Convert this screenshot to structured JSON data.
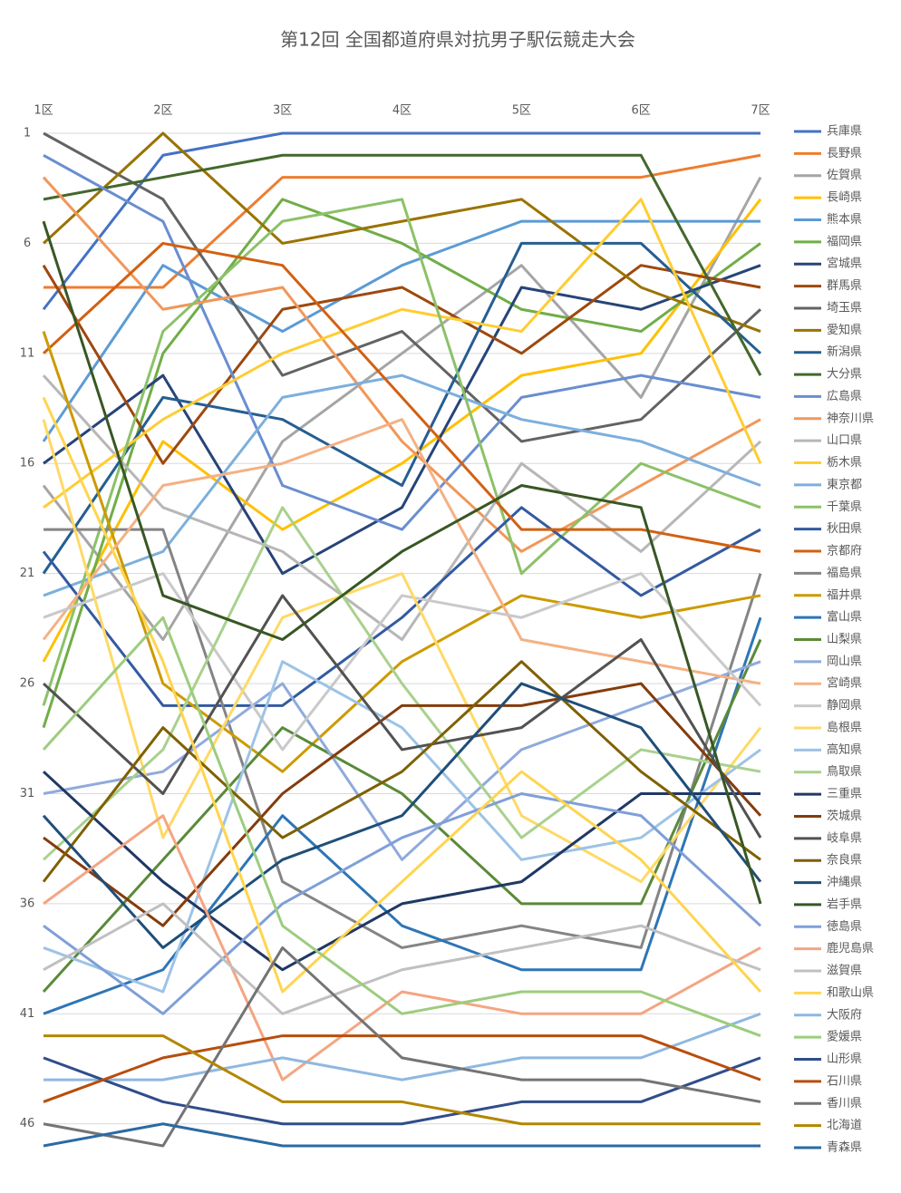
{
  "chart_data": {
    "type": "line",
    "title": "第12回 全国都道府県対抗男子駅伝競走大会",
    "categories": [
      "1区",
      "2区",
      "3区",
      "4区",
      "5区",
      "6区",
      "7区"
    ],
    "ylim": [
      47,
      1
    ],
    "yticks": [
      1,
      6,
      11,
      16,
      21,
      26,
      31,
      36,
      41,
      46
    ],
    "grid": true,
    "legend": "right",
    "series": [
      {
        "name": "兵庫県",
        "color": "#4472c4",
        "values": [
          9,
          2,
          1,
          1,
          1,
          1,
          1
        ]
      },
      {
        "name": "長野県",
        "color": "#ed7d31",
        "values": [
          8,
          8,
          3,
          3,
          3,
          3,
          2
        ]
      },
      {
        "name": "佐賀県",
        "color": "#a5a5a5",
        "values": [
          17,
          24,
          15,
          11,
          7,
          13,
          3
        ]
      },
      {
        "name": "長崎県",
        "color": "#ffc000",
        "values": [
          25,
          15,
          19,
          16,
          12,
          11,
          4
        ]
      },
      {
        "name": "熊本県",
        "color": "#5b9bd5",
        "values": [
          15,
          7,
          10,
          7,
          5,
          5,
          5
        ]
      },
      {
        "name": "福岡県",
        "color": "#70ad47",
        "values": [
          28,
          11,
          4,
          6,
          9,
          10,
          6
        ]
      },
      {
        "name": "宮城県",
        "color": "#264478",
        "values": [
          16,
          12,
          21,
          18,
          8,
          9,
          7
        ]
      },
      {
        "name": "群馬県",
        "color": "#9e480e",
        "values": [
          7,
          16,
          9,
          8,
          11,
          7,
          8
        ]
      },
      {
        "name": "埼玉県",
        "color": "#636363",
        "values": [
          1,
          4,
          12,
          10,
          15,
          14,
          9
        ]
      },
      {
        "name": "愛知県",
        "color": "#997300",
        "values": [
          6,
          1,
          6,
          5,
          4,
          8,
          10
        ]
      },
      {
        "name": "新潟県",
        "color": "#255e91",
        "values": [
          21,
          13,
          14,
          17,
          6,
          6,
          11
        ]
      },
      {
        "name": "大分県",
        "color": "#43682b",
        "values": [
          4,
          3,
          2,
          2,
          2,
          2,
          12
        ]
      },
      {
        "name": "広島県",
        "color": "#698ed0",
        "values": [
          2,
          5,
          17,
          19,
          13,
          12,
          13
        ]
      },
      {
        "name": "神奈川県",
        "color": "#f1975a",
        "values": [
          3,
          9,
          8,
          15,
          20,
          17,
          14
        ]
      },
      {
        "name": "山口県",
        "color": "#b7b7b7",
        "values": [
          12,
          18,
          20,
          24,
          16,
          20,
          15
        ]
      },
      {
        "name": "栃木県",
        "color": "#ffcd33",
        "values": [
          18,
          14,
          11,
          9,
          10,
          4,
          16
        ]
      },
      {
        "name": "東京都",
        "color": "#7cafdd",
        "values": [
          22,
          20,
          13,
          12,
          14,
          15,
          17
        ]
      },
      {
        "name": "千葉県",
        "color": "#8cc168",
        "values": [
          27,
          10,
          5,
          4,
          21,
          16,
          18
        ]
      },
      {
        "name": "秋田県",
        "color": "#335aa1",
        "values": [
          20,
          27,
          27,
          23,
          18,
          22,
          19
        ]
      },
      {
        "name": "京都府",
        "color": "#d26012",
        "values": [
          11,
          6,
          7,
          13,
          19,
          19,
          20
        ]
      },
      {
        "name": "福島県",
        "color": "#848484",
        "values": [
          19,
          19,
          35,
          38,
          37,
          38,
          21
        ]
      },
      {
        "name": "福井県",
        "color": "#cc9a00",
        "values": [
          10,
          26,
          30,
          25,
          22,
          23,
          22
        ]
      },
      {
        "name": "富山県",
        "color": "#2e75b6",
        "values": [
          41,
          39,
          32,
          37,
          39,
          39,
          23
        ]
      },
      {
        "name": "山梨県",
        "color": "#5a8a39",
        "values": [
          40,
          34,
          28,
          31,
          36,
          36,
          24
        ]
      },
      {
        "name": "岡山県",
        "color": "#8faadc",
        "values": [
          31,
          30,
          26,
          34,
          29,
          27,
          25
        ]
      },
      {
        "name": "宮崎県",
        "color": "#f4b183",
        "values": [
          24,
          17,
          16,
          14,
          24,
          25,
          26
        ]
      },
      {
        "name": "静岡県",
        "color": "#c9c9c9",
        "values": [
          23,
          21,
          29,
          22,
          23,
          21,
          27
        ]
      },
      {
        "name": "島根県",
        "color": "#ffd966",
        "values": [
          14,
          33,
          23,
          21,
          32,
          35,
          28
        ]
      },
      {
        "name": "高知県",
        "color": "#9dc3e6",
        "values": [
          38,
          40,
          25,
          28,
          34,
          33,
          29
        ]
      },
      {
        "name": "鳥取県",
        "color": "#a9d18e",
        "values": [
          34,
          29,
          18,
          26,
          33,
          29,
          30
        ]
      },
      {
        "name": "三重県",
        "color": "#203864",
        "values": [
          30,
          35,
          39,
          36,
          35,
          31,
          31
        ]
      },
      {
        "name": "茨城県",
        "color": "#843c0c",
        "values": [
          33,
          37,
          31,
          27,
          27,
          26,
          32
        ]
      },
      {
        "name": "岐阜県",
        "color": "#525252",
        "values": [
          26,
          31,
          22,
          29,
          28,
          24,
          33
        ]
      },
      {
        "name": "奈良県",
        "color": "#7f6000",
        "values": [
          35,
          28,
          33,
          30,
          25,
          30,
          34
        ]
      },
      {
        "name": "沖縄県",
        "color": "#1f4e79",
        "values": [
          32,
          38,
          34,
          32,
          26,
          28,
          35
        ]
      },
      {
        "name": "岩手県",
        "color": "#385723",
        "values": [
          5,
          22,
          24,
          20,
          17,
          18,
          36
        ]
      },
      {
        "name": "徳島県",
        "color": "#7f9fd8",
        "values": [
          37,
          41,
          36,
          33,
          31,
          32,
          37
        ]
      },
      {
        "name": "鹿児島県",
        "color": "#f4a582",
        "values": [
          36,
          32,
          44,
          40,
          41,
          41,
          38
        ]
      },
      {
        "name": "滋賀県",
        "color": "#c0c0c0",
        "values": [
          39,
          36,
          41,
          39,
          38,
          37,
          39
        ]
      },
      {
        "name": "和歌山県",
        "color": "#ffd54f",
        "values": [
          13,
          25,
          40,
          35,
          30,
          34,
          40
        ]
      },
      {
        "name": "大阪府",
        "color": "#8fb8e0",
        "values": [
          44,
          44,
          43,
          44,
          43,
          43,
          41
        ]
      },
      {
        "name": "愛媛県",
        "color": "#9dcc7e",
        "values": [
          29,
          23,
          37,
          41,
          40,
          40,
          42
        ]
      },
      {
        "name": "山形県",
        "color": "#2f4d8a",
        "values": [
          43,
          45,
          46,
          46,
          45,
          45,
          43
        ]
      },
      {
        "name": "石川県",
        "color": "#b84e0d",
        "values": [
          45,
          43,
          42,
          42,
          42,
          42,
          44
        ]
      },
      {
        "name": "香川県",
        "color": "#747474",
        "values": [
          46,
          47,
          38,
          43,
          44,
          44,
          45
        ]
      },
      {
        "name": "北海道",
        "color": "#b38600",
        "values": [
          42,
          42,
          45,
          45,
          46,
          46,
          46
        ]
      },
      {
        "name": "青森県",
        "color": "#2a6aa3",
        "values": [
          47,
          46,
          47,
          47,
          47,
          47,
          47
        ]
      }
    ]
  }
}
